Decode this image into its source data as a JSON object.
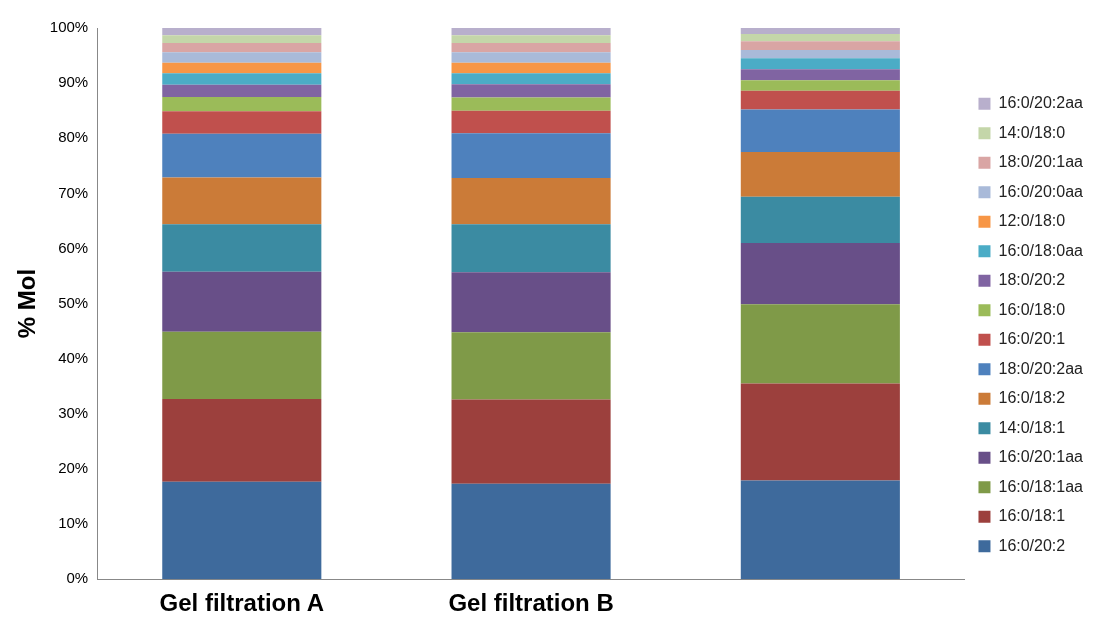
{
  "chart_data": {
    "type": "bar",
    "stacked": true,
    "ylabel": "% Mol",
    "categories": [
      "Gel filtration A",
      "Gel filtration B",
      null
    ],
    "ylim": [
      0,
      100
    ],
    "yticks": [
      {
        "value": 0,
        "label": "0%"
      },
      {
        "value": 10,
        "label": "10%"
      },
      {
        "value": 20,
        "label": "20%"
      },
      {
        "value": 30,
        "label": "30%"
      },
      {
        "value": 40,
        "label": "40%"
      },
      {
        "value": 50,
        "label": "50%"
      },
      {
        "value": 60,
        "label": "60%"
      },
      {
        "value": 70,
        "label": "70%"
      },
      {
        "value": 80,
        "label": "80%"
      },
      {
        "value": 90,
        "label": "90%"
      },
      {
        "value": 100,
        "label": "100%"
      }
    ],
    "grid": false,
    "legend": "right",
    "series": [
      {
        "name": "16:0/20:2",
        "color": "#3e6a9c",
        "values": [
          17.7,
          17.3,
          17.9
        ]
      },
      {
        "name": "16:0/18:1",
        "color": "#9c403d",
        "values": [
          15.0,
          15.3,
          17.6
        ]
      },
      {
        "name": "16:0/18:1aa",
        "color": "#7f9a48",
        "values": [
          12.2,
          12.2,
          14.4
        ]
      },
      {
        "name": "16:0/20:1aa",
        "color": "#684f88",
        "values": [
          10.9,
          10.9,
          11.1
        ]
      },
      {
        "name": "14:0/18:1",
        "color": "#3b8ba2",
        "values": [
          8.6,
          8.7,
          8.4
        ]
      },
      {
        "name": "16:0/18:2",
        "color": "#cb7b38",
        "values": [
          8.5,
          8.4,
          8.1
        ]
      },
      {
        "name": "18:0/20:2aa",
        "color": "#4e81bd",
        "values": [
          7.9,
          8.1,
          7.7
        ]
      },
      {
        "name": "16:0/20:1",
        "color": "#c0504d",
        "values": [
          4.1,
          4.1,
          3.4
        ]
      },
      {
        "name": "16:0/18:0",
        "color": "#9bbb59",
        "values": [
          2.6,
          2.4,
          1.9
        ]
      },
      {
        "name": "18:0/20:2",
        "color": "#8064a2",
        "values": [
          2.2,
          2.4,
          2.0
        ]
      },
      {
        "name": "16:0/18:0aa",
        "color": "#4bacc6",
        "values": [
          2.1,
          2.0,
          2.0
        ]
      },
      {
        "name": "12:0/18:0",
        "color": "#f79646",
        "values": [
          1.9,
          1.9,
          0
        ]
      },
      {
        "name": "16:0/20:0aa",
        "color": "#a9bad9",
        "values": [
          1.9,
          1.9,
          1.5
        ]
      },
      {
        "name": "18:0/20:1aa",
        "color": "#d9a5a4",
        "values": [
          1.7,
          1.7,
          1.6
        ]
      },
      {
        "name": "14:0/18:0",
        "color": "#c4d6a9",
        "values": [
          1.4,
          1.4,
          1.3
        ]
      },
      {
        "name": "16:0/20:2aa",
        "color": "#b8afcc",
        "values": [
          1.3,
          1.3,
          1.1
        ]
      }
    ]
  }
}
